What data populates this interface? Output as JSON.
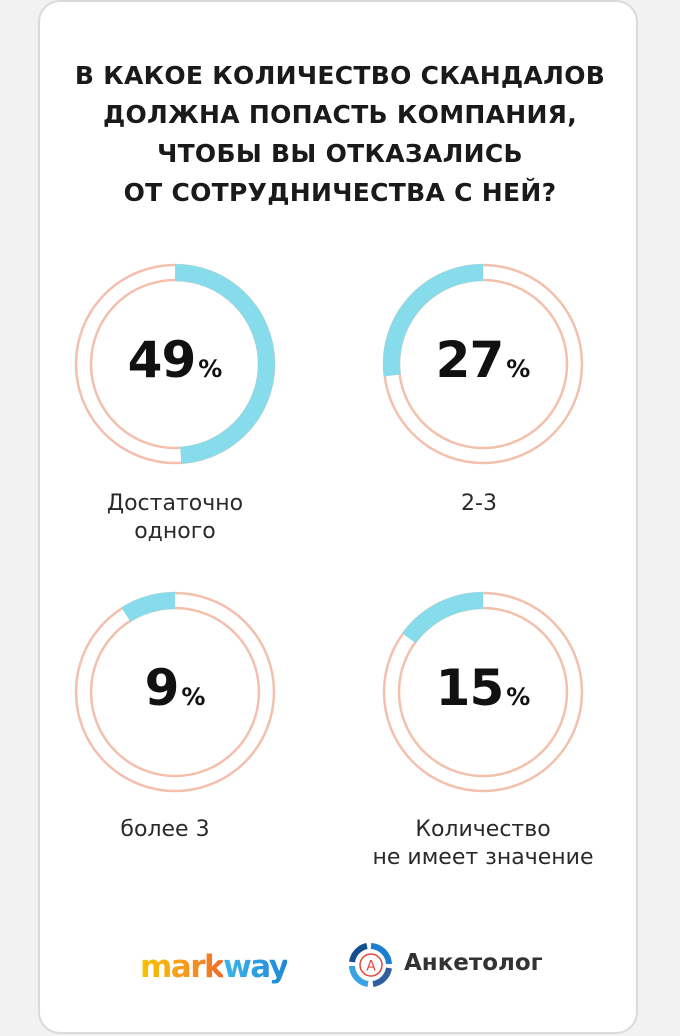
{
  "title_lines": [
    "В КАКОЕ КОЛИЧЕСТВО СКАНДАЛОВ",
    "ДОЛЖНА ПОПАСТЬ КОМПАНИЯ,",
    "ЧТОБЫ ВЫ ОТКАЗАЛИСЬ",
    "ОТ СОТРУДНИЧЕСТВА С НЕЙ?"
  ],
  "colors": {
    "ring": "#f3c0ad",
    "fill": "#86dcea",
    "text": "#111111"
  },
  "chart_data": {
    "type": "pie",
    "title": "В КАКОЕ КОЛИЧЕСТВО СКАНДАЛОВ ДОЛЖНА ПОПАСТЬ КОМПАНИЯ, ЧТОБЫ ВЫ ОТКАЗАЛИСЬ ОТ СОТРУДНИЧЕСТВА С НЕЙ?",
    "unit": "%",
    "items": [
      {
        "value": 49,
        "value_label": "49",
        "label_lines": [
          "Достаточно",
          "одного"
        ]
      },
      {
        "value": 27,
        "value_label": "27",
        "label_lines": [
          "2-3"
        ]
      },
      {
        "value": 9,
        "value_label": "9",
        "label_lines": [
          "более 3"
        ]
      },
      {
        "value": 15,
        "value_label": "15",
        "label_lines": [
          "Количество",
          "не имеет значение"
        ]
      }
    ]
  },
  "logos": {
    "markway_mark": "mark",
    "markway_way": "way",
    "anketolog_text": "Анкетолог",
    "anketolog_letter": "A"
  }
}
